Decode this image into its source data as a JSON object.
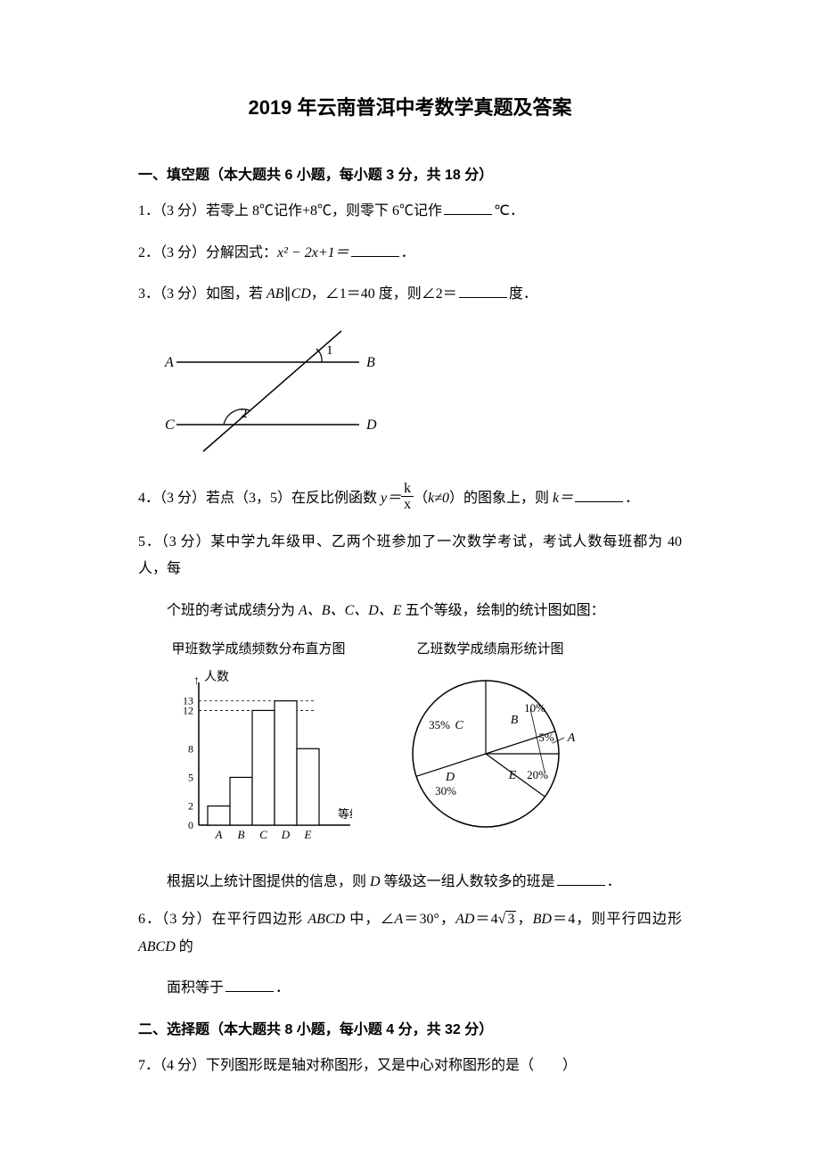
{
  "title": "2019 年云南普洱中考数学真题及答案",
  "section1": "一、填空题（本大题共 6 小题，每小题 3 分，共 18 分）",
  "q1": "1．（3 分）若零上 8℃记作+8℃，则零下 6℃记作",
  "q1_unit": "℃．",
  "q2": "2．（3 分）分解因式：",
  "q2_expr": "x² − 2x+1＝",
  "q2_end": "．",
  "q3": "3．（3 分）如图，若 ",
  "q3_mid": "，∠1＝40 度，则∠2＝",
  "q3_end": "度．",
  "q3_ab": "AB",
  "q3_parallel": "∥",
  "q3_cd": "CD",
  "diagram1": {
    "A": "A",
    "B": "B",
    "C": "C",
    "D": "D",
    "1": "1",
    "2": "2"
  },
  "q4_a": "4．（3 分）若点（3，5）在反比例函数 ",
  "q4_y": "y＝",
  "q4_k": "k",
  "q4_x": "x",
  "q4_b": "（",
  "q4_kne": "k≠0",
  "q4_c": "）的图象上，则 ",
  "q4_keq": "k＝",
  "q4_end": "．",
  "q5_a": "5．（3 分）某中学九年级甲、乙两个班参加了一次数学考试，考试人数每班都为 40 人，每",
  "q5_b": "个班的考试成绩分为 ",
  "q5_grades": "A、B、C、D、E",
  "q5_c": " 五个等级，绘制的统计图如图：",
  "bar_chart": {
    "title": "甲班数学成绩频数分布直方图",
    "ylabel": "人数",
    "xlabel": "等级",
    "yticks": [
      0,
      2,
      5,
      8,
      12,
      13
    ],
    "categories": [
      "A",
      "B",
      "C",
      "D",
      "E"
    ],
    "values": [
      2,
      5,
      12,
      13,
      8
    ],
    "color": "#ffffff",
    "border": "#000000",
    "fontsize": 13
  },
  "pie_chart": {
    "title": "乙班数学成绩扇形统计图",
    "slices": [
      {
        "label": "C",
        "pct": "35%",
        "start": 126,
        "end": 252
      },
      {
        "label": "B",
        "pct": "10%",
        "start": 90,
        "end": 126
      },
      {
        "label": "A",
        "pct": "5%",
        "start": 72,
        "end": 90
      },
      {
        "label": "E",
        "pct": "20%",
        "start": 0,
        "end": 72
      },
      {
        "label": "D",
        "pct": "30%",
        "start": 252,
        "end": 360
      }
    ],
    "color": "#ffffff",
    "border": "#000000",
    "fontsize": 13
  },
  "q5_d": "根据以上统计图提供的信息，则 ",
  "q5_dgrade": "D",
  "q5_e": " 等级这一组人数较多的班是",
  "q5_end": "．",
  "q6_a": "6．（3 分）在平行四边形 ",
  "q6_abcd": "ABCD",
  "q6_b": " 中，∠",
  "q6_A": "A",
  "q6_c": "＝30°，",
  "q6_ad": "AD",
  "q6_d": "＝4",
  "q6_sqrt": "3",
  "q6_e": "，",
  "q6_bd": "BD",
  "q6_f": "＝4，则平行四边形 ",
  "q6_g": " 的",
  "q6_h": "面积等于",
  "q6_end": "．",
  "section2": "二、选择题（本大题共 8 小题，每小题 4 分，共 32 分）",
  "q7": "7．（4 分）下列图形既是轴对称图形，又是中心对称图形的是（　　）"
}
